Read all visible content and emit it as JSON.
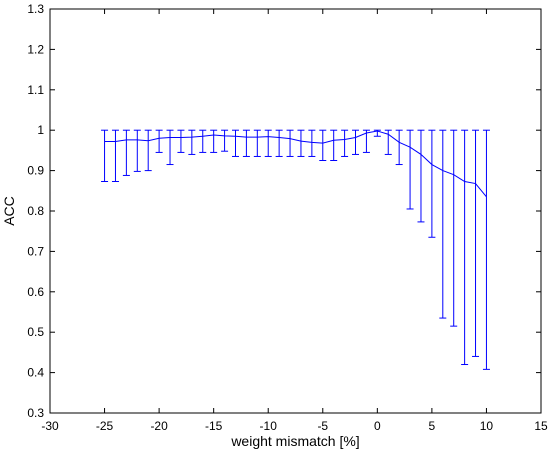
{
  "chart_data": {
    "type": "line",
    "title": "",
    "xlabel": "weight mismatch [%]",
    "ylabel": "ACC",
    "xlim": [
      -30,
      15
    ],
    "ylim": [
      0.3,
      1.3
    ],
    "xticks": [
      "-30",
      "-25",
      "-20",
      "-15",
      "-10",
      "-5",
      "0",
      "5",
      "10",
      "15"
    ],
    "yticks": [
      "0.3",
      "0.4",
      "0.5",
      "0.6",
      "0.7",
      "0.8",
      "0.9",
      "1",
      "1.1",
      "1.2",
      "1.3"
    ],
    "grid": false,
    "legend": "none",
    "series_color": "#0000ff",
    "series": [
      {
        "x": [
          -25,
          -24,
          -23,
          -22,
          -21,
          -20,
          -19,
          -18,
          -17,
          -16,
          -15,
          -14,
          -13,
          -12,
          -11,
          -10,
          -9,
          -8,
          -7,
          -6,
          -5,
          -4,
          -3,
          -2,
          -1,
          0,
          1,
          2,
          3,
          4,
          5,
          6,
          7,
          8,
          9,
          10
        ],
        "y": [
          0.972,
          0.972,
          0.976,
          0.976,
          0.974,
          0.98,
          0.982,
          0.982,
          0.983,
          0.985,
          0.988,
          0.986,
          0.985,
          0.983,
          0.983,
          0.984,
          0.982,
          0.979,
          0.973,
          0.97,
          0.968,
          0.975,
          0.977,
          0.982,
          0.993,
          0.998,
          0.99,
          0.97,
          0.958,
          0.94,
          0.915,
          0.9,
          0.89,
          0.873,
          0.868,
          0.835
        ],
        "error_low": [
          0.873,
          0.873,
          0.888,
          0.898,
          0.9,
          0.945,
          0.915,
          0.945,
          0.94,
          0.945,
          0.945,
          0.948,
          0.935,
          0.935,
          0.935,
          0.935,
          0.935,
          0.935,
          0.935,
          0.935,
          0.925,
          0.925,
          0.935,
          0.94,
          0.945,
          0.985,
          0.94,
          0.915,
          0.805,
          0.773,
          0.735,
          0.535,
          0.515,
          0.42,
          0.44,
          0.408
        ],
        "error_high": [
          1,
          1,
          1,
          1,
          1,
          1,
          1,
          1,
          1,
          1,
          1,
          1,
          1,
          1,
          1,
          1,
          1,
          1,
          1,
          1,
          1,
          1,
          1,
          1,
          1,
          1,
          1,
          1,
          1,
          1,
          1,
          1,
          1,
          1,
          1,
          1
        ]
      }
    ]
  }
}
